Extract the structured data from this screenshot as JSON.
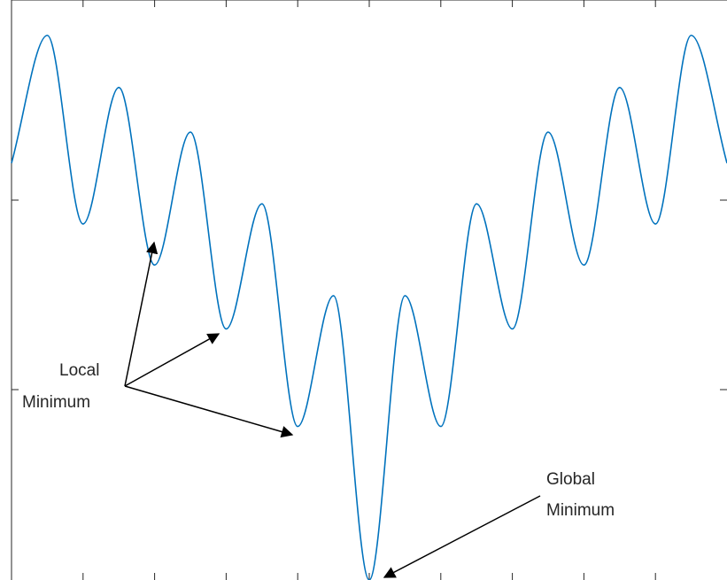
{
  "chart_data": {
    "type": "line",
    "x_domain": [
      -5,
      5
    ],
    "series": [
      {
        "color": "#0072BD",
        "points": [
          [
            -5.0,
            9.53
          ],
          [
            -4.5,
            12.45
          ],
          [
            -4.0,
            8.14
          ],
          [
            -3.5,
            11.26
          ],
          [
            -3.0,
            7.2
          ],
          [
            -2.5,
            10.24
          ],
          [
            -2.0,
            5.74
          ],
          [
            -1.5,
            8.6
          ],
          [
            -1.0,
            3.51
          ],
          [
            -0.5,
            6.5
          ],
          [
            0.0,
            0.0
          ],
          [
            0.5,
            6.5
          ],
          [
            1.0,
            3.51
          ],
          [
            1.5,
            8.6
          ],
          [
            2.0,
            5.74
          ],
          [
            2.5,
            10.24
          ],
          [
            3.0,
            7.2
          ],
          [
            3.5,
            11.26
          ],
          [
            4.0,
            8.14
          ],
          [
            4.5,
            12.45
          ],
          [
            5.0,
            9.53
          ]
        ]
      }
    ],
    "grid": false,
    "annotations": [
      {
        "id": "local",
        "lines": [
          "Local",
          "Minimum"
        ]
      },
      {
        "id": "global",
        "lines": [
          "Global",
          "Minimum"
        ]
      }
    ]
  }
}
